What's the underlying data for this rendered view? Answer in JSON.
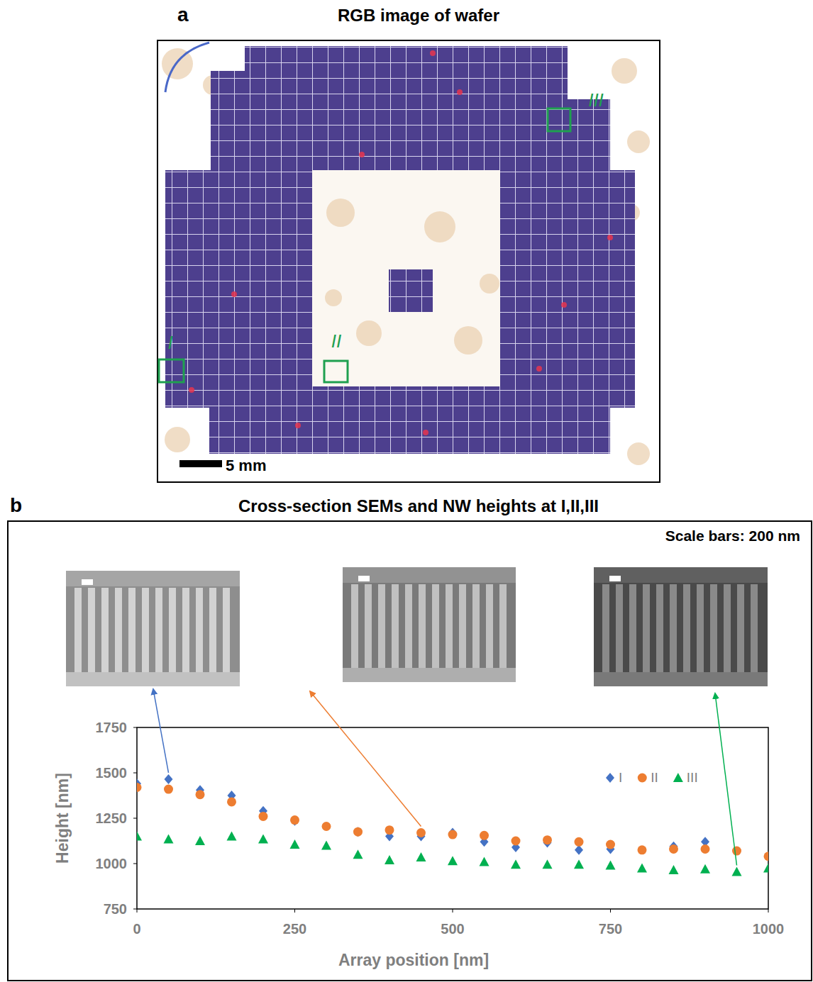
{
  "panel_a": {
    "letter": "a",
    "title": "RGB image of wafer",
    "scale_bar": "5 mm",
    "regions": [
      "I",
      "II",
      "III"
    ]
  },
  "panel_b": {
    "letter": "b",
    "title": "Cross-section SEMs and NW heights at I,II,III",
    "scale_bars": "Scale bars: 200 nm"
  },
  "chart_data": {
    "type": "scatter",
    "x_label": "Array position [nm]",
    "y_label": "Height [nm]",
    "x": [
      0,
      50,
      100,
      150,
      200,
      250,
      300,
      350,
      400,
      450,
      500,
      550,
      600,
      650,
      700,
      750,
      800,
      850,
      900,
      950,
      1000
    ],
    "series": [
      {
        "name": "I",
        "color": "#4472c4",
        "marker": "diamond",
        "values": [
          1440,
          1465,
          1405,
          1375,
          1290,
          1235,
          null,
          1175,
          1150,
          1150,
          1170,
          1120,
          1090,
          1115,
          1075,
          1080,
          null,
          1095,
          1120,
          null,
          null
        ]
      },
      {
        "name": "II",
        "color": "#ed7d31",
        "marker": "circle",
        "values": [
          1420,
          1410,
          1380,
          1340,
          1260,
          1240,
          1205,
          1175,
          1185,
          1170,
          1160,
          1155,
          1125,
          1130,
          1120,
          1105,
          1075,
          1080,
          1080,
          1070,
          1040
        ]
      },
      {
        "name": "III",
        "color": "#00b050",
        "marker": "triangle",
        "values": [
          1150,
          1135,
          1125,
          1150,
          1135,
          1105,
          1100,
          1050,
          1020,
          1035,
          1015,
          1010,
          995,
          995,
          995,
          990,
          975,
          965,
          970,
          955,
          975
        ]
      }
    ],
    "xlim": [
      0,
      1000
    ],
    "xticks": [
      0,
      250,
      500,
      750,
      1000
    ],
    "ylim": [
      750,
      1750
    ],
    "yticks": [
      750,
      1000,
      1250,
      1500,
      1750
    ],
    "grid": false,
    "legend": "upper right"
  }
}
